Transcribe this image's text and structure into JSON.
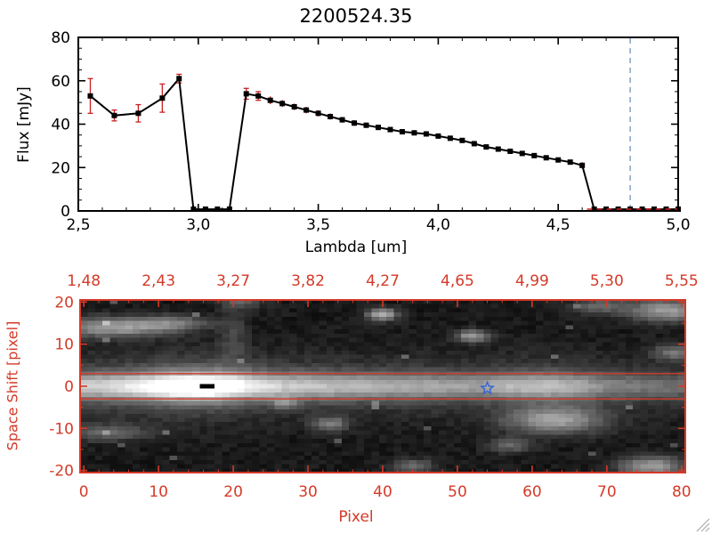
{
  "window": {
    "background": "#ffffff"
  },
  "chart_data": [
    {
      "type": "line",
      "title": "2200524.35",
      "xlabel": "Lambda [um]",
      "ylabel": "Flux [mJy]",
      "xlim": [
        2.5,
        5.0
      ],
      "ylim": [
        0,
        80
      ],
      "grid": false,
      "xticks": {
        "values": [
          2.5,
          3.0,
          3.5,
          4.0,
          4.5,
          5.0
        ],
        "labels": [
          "2,5",
          "3,0",
          "3,5",
          "4,0",
          "4,5",
          "5,0"
        ],
        "minor_step": 0.1
      },
      "yticks": {
        "values": [
          0,
          20,
          40,
          60,
          80
        ],
        "labels": [
          "0",
          "20",
          "40",
          "60",
          "80"
        ],
        "minor_step": 5
      },
      "series": [
        {
          "name": "spectrum",
          "marker": "filled-square",
          "line_color": "#000000",
          "marker_color": "#000000",
          "error_color": "#cc2020",
          "x": [
            2.55,
            2.65,
            2.75,
            2.85,
            2.92,
            2.98,
            3.03,
            3.08,
            3.13,
            3.2,
            3.25,
            3.3,
            3.35,
            3.4,
            3.45,
            3.5,
            3.55,
            3.6,
            3.65,
            3.7,
            3.75,
            3.8,
            3.85,
            3.9,
            3.95,
            4.0,
            4.05,
            4.1,
            4.15,
            4.2,
            4.25,
            4.3,
            4.35,
            4.4,
            4.45,
            4.5,
            4.55,
            4.6,
            4.65,
            4.7,
            4.75,
            4.8,
            4.85,
            4.9,
            4.95,
            5.0
          ],
          "y": [
            53,
            44,
            45,
            52,
            61,
            0.8,
            0.8,
            0.8,
            0.8,
            54,
            53,
            51,
            49.5,
            48,
            46.5,
            45,
            43.5,
            42,
            40.5,
            39.5,
            38.5,
            37.5,
            36.5,
            36,
            35.5,
            34.5,
            33.5,
            32.5,
            31,
            29.5,
            28.5,
            27.5,
            26.5,
            25.5,
            24.5,
            23.5,
            22.5,
            21,
            0.8,
            0.8,
            0.8,
            0.8,
            0.8,
            0.8,
            0.8,
            0.8
          ],
          "yerr": [
            8,
            2.5,
            4,
            6.5,
            2,
            0.4,
            0.4,
            0.4,
            0.4,
            2.5,
            2,
            1.8,
            1.6,
            1.5,
            1.5,
            1.4,
            1.4,
            1.3,
            1.3,
            1.2,
            1.2,
            1.2,
            1.1,
            1.1,
            1.1,
            1,
            1,
            1,
            1,
            1,
            1,
            1,
            1,
            1,
            1,
            1,
            1,
            1.5,
            0.3,
            0.3,
            0.3,
            0.3,
            0.3,
            0.3,
            0.3,
            0.3
          ]
        }
      ],
      "vline": {
        "x": 4.8,
        "color": "#7a9cc0",
        "style": "dashed"
      },
      "zero_line": {
        "y": 0,
        "x_start": 4.62,
        "x_end": 5.0,
        "color": "#cc2020",
        "style": "dashed"
      }
    },
    {
      "type": "heatmap",
      "xlabel": "Pixel",
      "ylabel": "Space Shift [pixel]",
      "axis_color": "#d43a28",
      "xlim": [
        0,
        80
      ],
      "ylim": [
        -20,
        20
      ],
      "xticks": {
        "values": [
          0,
          10,
          20,
          30,
          40,
          50,
          60,
          70,
          80
        ],
        "labels": [
          "0",
          "10",
          "20",
          "30",
          "40",
          "50",
          "60",
          "70",
          "80"
        ],
        "minor_step": 2
      },
      "yticks": {
        "values": [
          20,
          10,
          0,
          -10,
          -20
        ],
        "labels": [
          "20",
          "10",
          "0",
          "-10",
          "-20"
        ],
        "minor_step": 5
      },
      "top_axis_labels": [
        "1,48",
        "2,43",
        "3,27",
        "3,82",
        "4,27",
        "4,65",
        "4,99",
        "5,30",
        "5,55"
      ],
      "aperture_lines": {
        "values": [
          3,
          -3
        ],
        "color": "#d43a28"
      },
      "star": {
        "x": 54,
        "y": -0.5,
        "color": "#3a66cc"
      },
      "image": {
        "cols": 81,
        "rows": 41,
        "background": 0.03,
        "noise": {
          "seed": 77,
          "amp": 0.07,
          "speck_prob": 0.006,
          "speck_amp": 0.22
        },
        "band": {
          "center": 0,
          "sigma": 2.1,
          "halo_sigma": 5.0,
          "halo_frac": 0.3,
          "profile": [
            [
              0,
              0.55
            ],
            [
              4,
              0.6
            ],
            [
              8,
              0.72
            ],
            [
              12,
              0.95
            ],
            [
              15,
              1.0
            ],
            [
              18,
              0.95
            ],
            [
              22,
              0.7
            ],
            [
              27,
              0.55
            ],
            [
              33,
              0.5
            ],
            [
              40,
              0.45
            ],
            [
              47,
              0.42
            ],
            [
              53,
              0.4
            ],
            [
              57,
              0.48
            ],
            [
              62,
              0.52
            ],
            [
              66,
              0.44
            ],
            [
              70,
              0.32
            ],
            [
              75,
              0.26
            ],
            [
              80,
              0.24
            ]
          ]
        },
        "blobs": [
          {
            "x": 4,
            "y": 14,
            "amp": 0.5,
            "sx": 5.5,
            "sy": 1.6
          },
          {
            "x": 12,
            "y": 15,
            "amp": 0.28,
            "sx": 3.5,
            "sy": 1.2
          },
          {
            "x": 3,
            "y": -11,
            "amp": 0.26,
            "sx": 4,
            "sy": 1.4
          },
          {
            "x": 20,
            "y": 12,
            "amp": 0.15,
            "sx": 1.2,
            "sy": 5
          },
          {
            "x": 40,
            "y": 17,
            "amp": 0.6,
            "sx": 1.4,
            "sy": 1.0
          },
          {
            "x": 52,
            "y": 12,
            "amp": 0.5,
            "sx": 1.5,
            "sy": 1.0
          },
          {
            "x": 27,
            "y": -4,
            "amp": 0.3,
            "sx": 1.2,
            "sy": 0.9
          },
          {
            "x": 33,
            "y": -9,
            "amp": 0.38,
            "sx": 1.6,
            "sy": 1.1
          },
          {
            "x": 63,
            "y": -8,
            "amp": 0.5,
            "sx": 4.5,
            "sy": 2.2
          },
          {
            "x": 57,
            "y": -14,
            "amp": 0.28,
            "sx": 2,
            "sy": 1.2
          },
          {
            "x": 76,
            "y": -19,
            "amp": 0.5,
            "sx": 3,
            "sy": 1.6
          },
          {
            "x": 79,
            "y": 8,
            "amp": 0.33,
            "sx": 2,
            "sy": 1.2
          },
          {
            "x": 78,
            "y": 18,
            "amp": 0.5,
            "sx": 3.5,
            "sy": 1.8
          },
          {
            "x": 69,
            "y": 19,
            "amp": 0.28,
            "sx": 2.5,
            "sy": 1.2
          },
          {
            "x": 44,
            "y": -19,
            "amp": 0.3,
            "sx": 2,
            "sy": 1.2
          },
          {
            "x": 21,
            "y": 20,
            "amp": 0.24,
            "sx": 2,
            "sy": 1
          }
        ],
        "black_marker": {
          "col": 16,
          "row": 20,
          "w": 2,
          "h": 1
        }
      }
    }
  ],
  "decor": {
    "gripper_color": "#aaaaaa"
  }
}
